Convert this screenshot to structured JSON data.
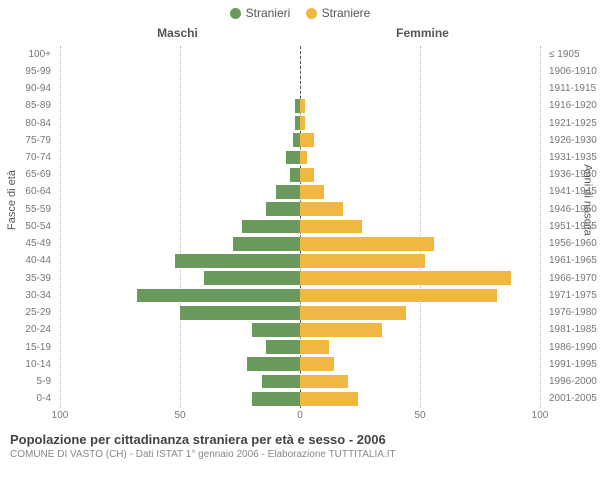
{
  "chart": {
    "type": "population_pyramid",
    "bg_color": "#ffffff",
    "grid_color": "#bbbbbb",
    "center_color": "#555555",
    "text_color": "#555555",
    "male_color": "#6a9a5b",
    "female_color": "#f0b840",
    "legend": {
      "male": "Stranieri",
      "female": "Straniere"
    },
    "col_left": "Maschi",
    "col_right": "Femmine",
    "y_axis_left_title": "Fasce di età",
    "y_axis_right_title": "Anni di nascita",
    "x_max": 100,
    "x_ticks": [
      100,
      50,
      0,
      50,
      100
    ],
    "age_groups": [
      {
        "age": "100+",
        "birth": "≤ 1905",
        "m": 0,
        "f": 0
      },
      {
        "age": "95-99",
        "birth": "1906-1910",
        "m": 0,
        "f": 0
      },
      {
        "age": "90-94",
        "birth": "1911-1915",
        "m": 0,
        "f": 0
      },
      {
        "age": "85-89",
        "birth": "1916-1920",
        "m": 2,
        "f": 2
      },
      {
        "age": "80-84",
        "birth": "1921-1925",
        "m": 2,
        "f": 2
      },
      {
        "age": "75-79",
        "birth": "1926-1930",
        "m": 3,
        "f": 6
      },
      {
        "age": "70-74",
        "birth": "1931-1935",
        "m": 6,
        "f": 3
      },
      {
        "age": "65-69",
        "birth": "1936-1940",
        "m": 4,
        "f": 6
      },
      {
        "age": "60-64",
        "birth": "1941-1945",
        "m": 10,
        "f": 10
      },
      {
        "age": "55-59",
        "birth": "1946-1950",
        "m": 14,
        "f": 18
      },
      {
        "age": "50-54",
        "birth": "1951-1955",
        "m": 24,
        "f": 26
      },
      {
        "age": "45-49",
        "birth": "1956-1960",
        "m": 28,
        "f": 56
      },
      {
        "age": "40-44",
        "birth": "1961-1965",
        "m": 52,
        "f": 52
      },
      {
        "age": "35-39",
        "birth": "1966-1970",
        "m": 40,
        "f": 88
      },
      {
        "age": "30-34",
        "birth": "1971-1975",
        "m": 68,
        "f": 82
      },
      {
        "age": "25-29",
        "birth": "1976-1980",
        "m": 50,
        "f": 44
      },
      {
        "age": "20-24",
        "birth": "1981-1985",
        "m": 20,
        "f": 34
      },
      {
        "age": "15-19",
        "birth": "1986-1990",
        "m": 14,
        "f": 12
      },
      {
        "age": "10-14",
        "birth": "1991-1995",
        "m": 22,
        "f": 14
      },
      {
        "age": "5-9",
        "birth": "1996-2000",
        "m": 16,
        "f": 20
      },
      {
        "age": "0-4",
        "birth": "2001-2005",
        "m": 20,
        "f": 24
      }
    ]
  },
  "footer": {
    "title": "Popolazione per cittadinanza straniera per età e sesso - 2006",
    "subtitle": "COMUNE DI VASTO (CH) - Dati ISTAT 1° gennaio 2006 - Elaborazione TUTTITALIA.IT"
  }
}
